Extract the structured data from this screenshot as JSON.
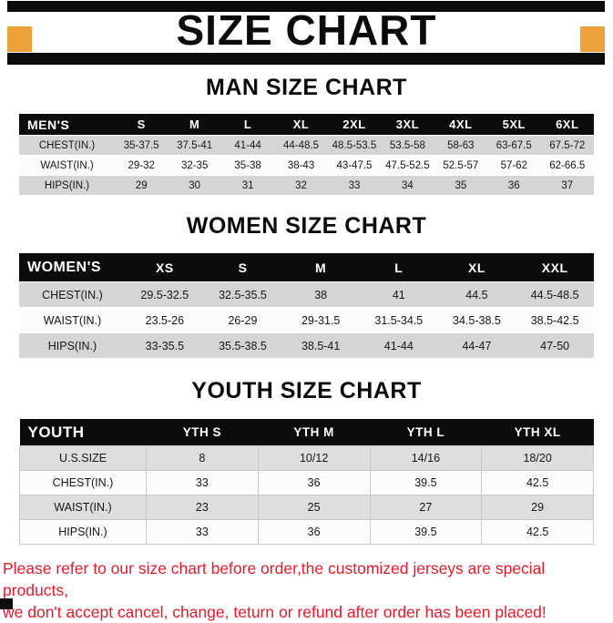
{
  "header": {
    "title": "SIZE CHART"
  },
  "colors": {
    "accent_orange": "#EDA03B",
    "header_black": "#0C0C0C",
    "row_gray": "#D5D5D5",
    "footer_red": "#E8182A"
  },
  "sections": [
    {
      "id": "men",
      "title": "MAN SIZE CHART",
      "columns": [
        "MEN'S",
        "S",
        "M",
        "L",
        "XL",
        "2XL",
        "3XL",
        "4XL",
        "5XL",
        "6XL"
      ],
      "rows": [
        {
          "label": "CHEST(IN.)",
          "values": [
            "35-37.5",
            "37.5-41",
            "41-44",
            "44-48.5",
            "48.5-53.5",
            "53.5-58",
            "58-63",
            "63-67.5",
            "67.5-72"
          ]
        },
        {
          "label": "WAIST(IN.)",
          "values": [
            "29-32",
            "32-35",
            "35-38",
            "38-43",
            "43-47.5",
            "47.5-52.5",
            "52.5-57",
            "57-62",
            "62-66.5"
          ]
        },
        {
          "label": "HIPS(IN.)",
          "values": [
            "29",
            "30",
            "31",
            "32",
            "33",
            "34",
            "35",
            "36",
            "37"
          ]
        }
      ]
    },
    {
      "id": "women",
      "title": "WOMEN SIZE CHART",
      "columns": [
        "WOMEN'S",
        "XS",
        "S",
        "M",
        "L",
        "XL",
        "XXL"
      ],
      "rows": [
        {
          "label": "CHEST(IN.)",
          "values": [
            "29.5-32.5",
            "32.5-35.5",
            "38",
            "41",
            "44.5",
            "44.5-48.5"
          ]
        },
        {
          "label": "WAIST(IN.)",
          "values": [
            "23.5-26",
            "26-29",
            "29-31.5",
            "31.5-34.5",
            "34.5-38.5",
            "38.5-42.5"
          ]
        },
        {
          "label": "HIPS(IN.)",
          "values": [
            "33-35.5",
            "35.5-38.5",
            "38.5-41",
            "41-44",
            "44-47",
            "47-50"
          ]
        }
      ]
    },
    {
      "id": "youth",
      "title": "YOUTH SIZE CHART",
      "columns": [
        "YOUTH",
        "YTH S",
        "YTH M",
        "YTH L",
        "YTH XL"
      ],
      "rows": [
        {
          "label": "U.S.SIZE",
          "values": [
            "8",
            "10/12",
            "14/16",
            "18/20"
          ]
        },
        {
          "label": "CHEST(IN.)",
          "values": [
            "33",
            "36",
            "39.5",
            "42.5"
          ]
        },
        {
          "label": "WAIST(IN.)",
          "values": [
            "23",
            "25",
            "27",
            "29"
          ]
        },
        {
          "label": "HIPS(IN.)",
          "values": [
            "33",
            "36",
            "39.5",
            "42.5"
          ]
        }
      ]
    }
  ],
  "footer": {
    "line1": "Please refer to our size chart before order,the customized jerseys are special products,",
    "line2": "we don't accept cancel, change, teturn or refund after order has been placed!"
  }
}
